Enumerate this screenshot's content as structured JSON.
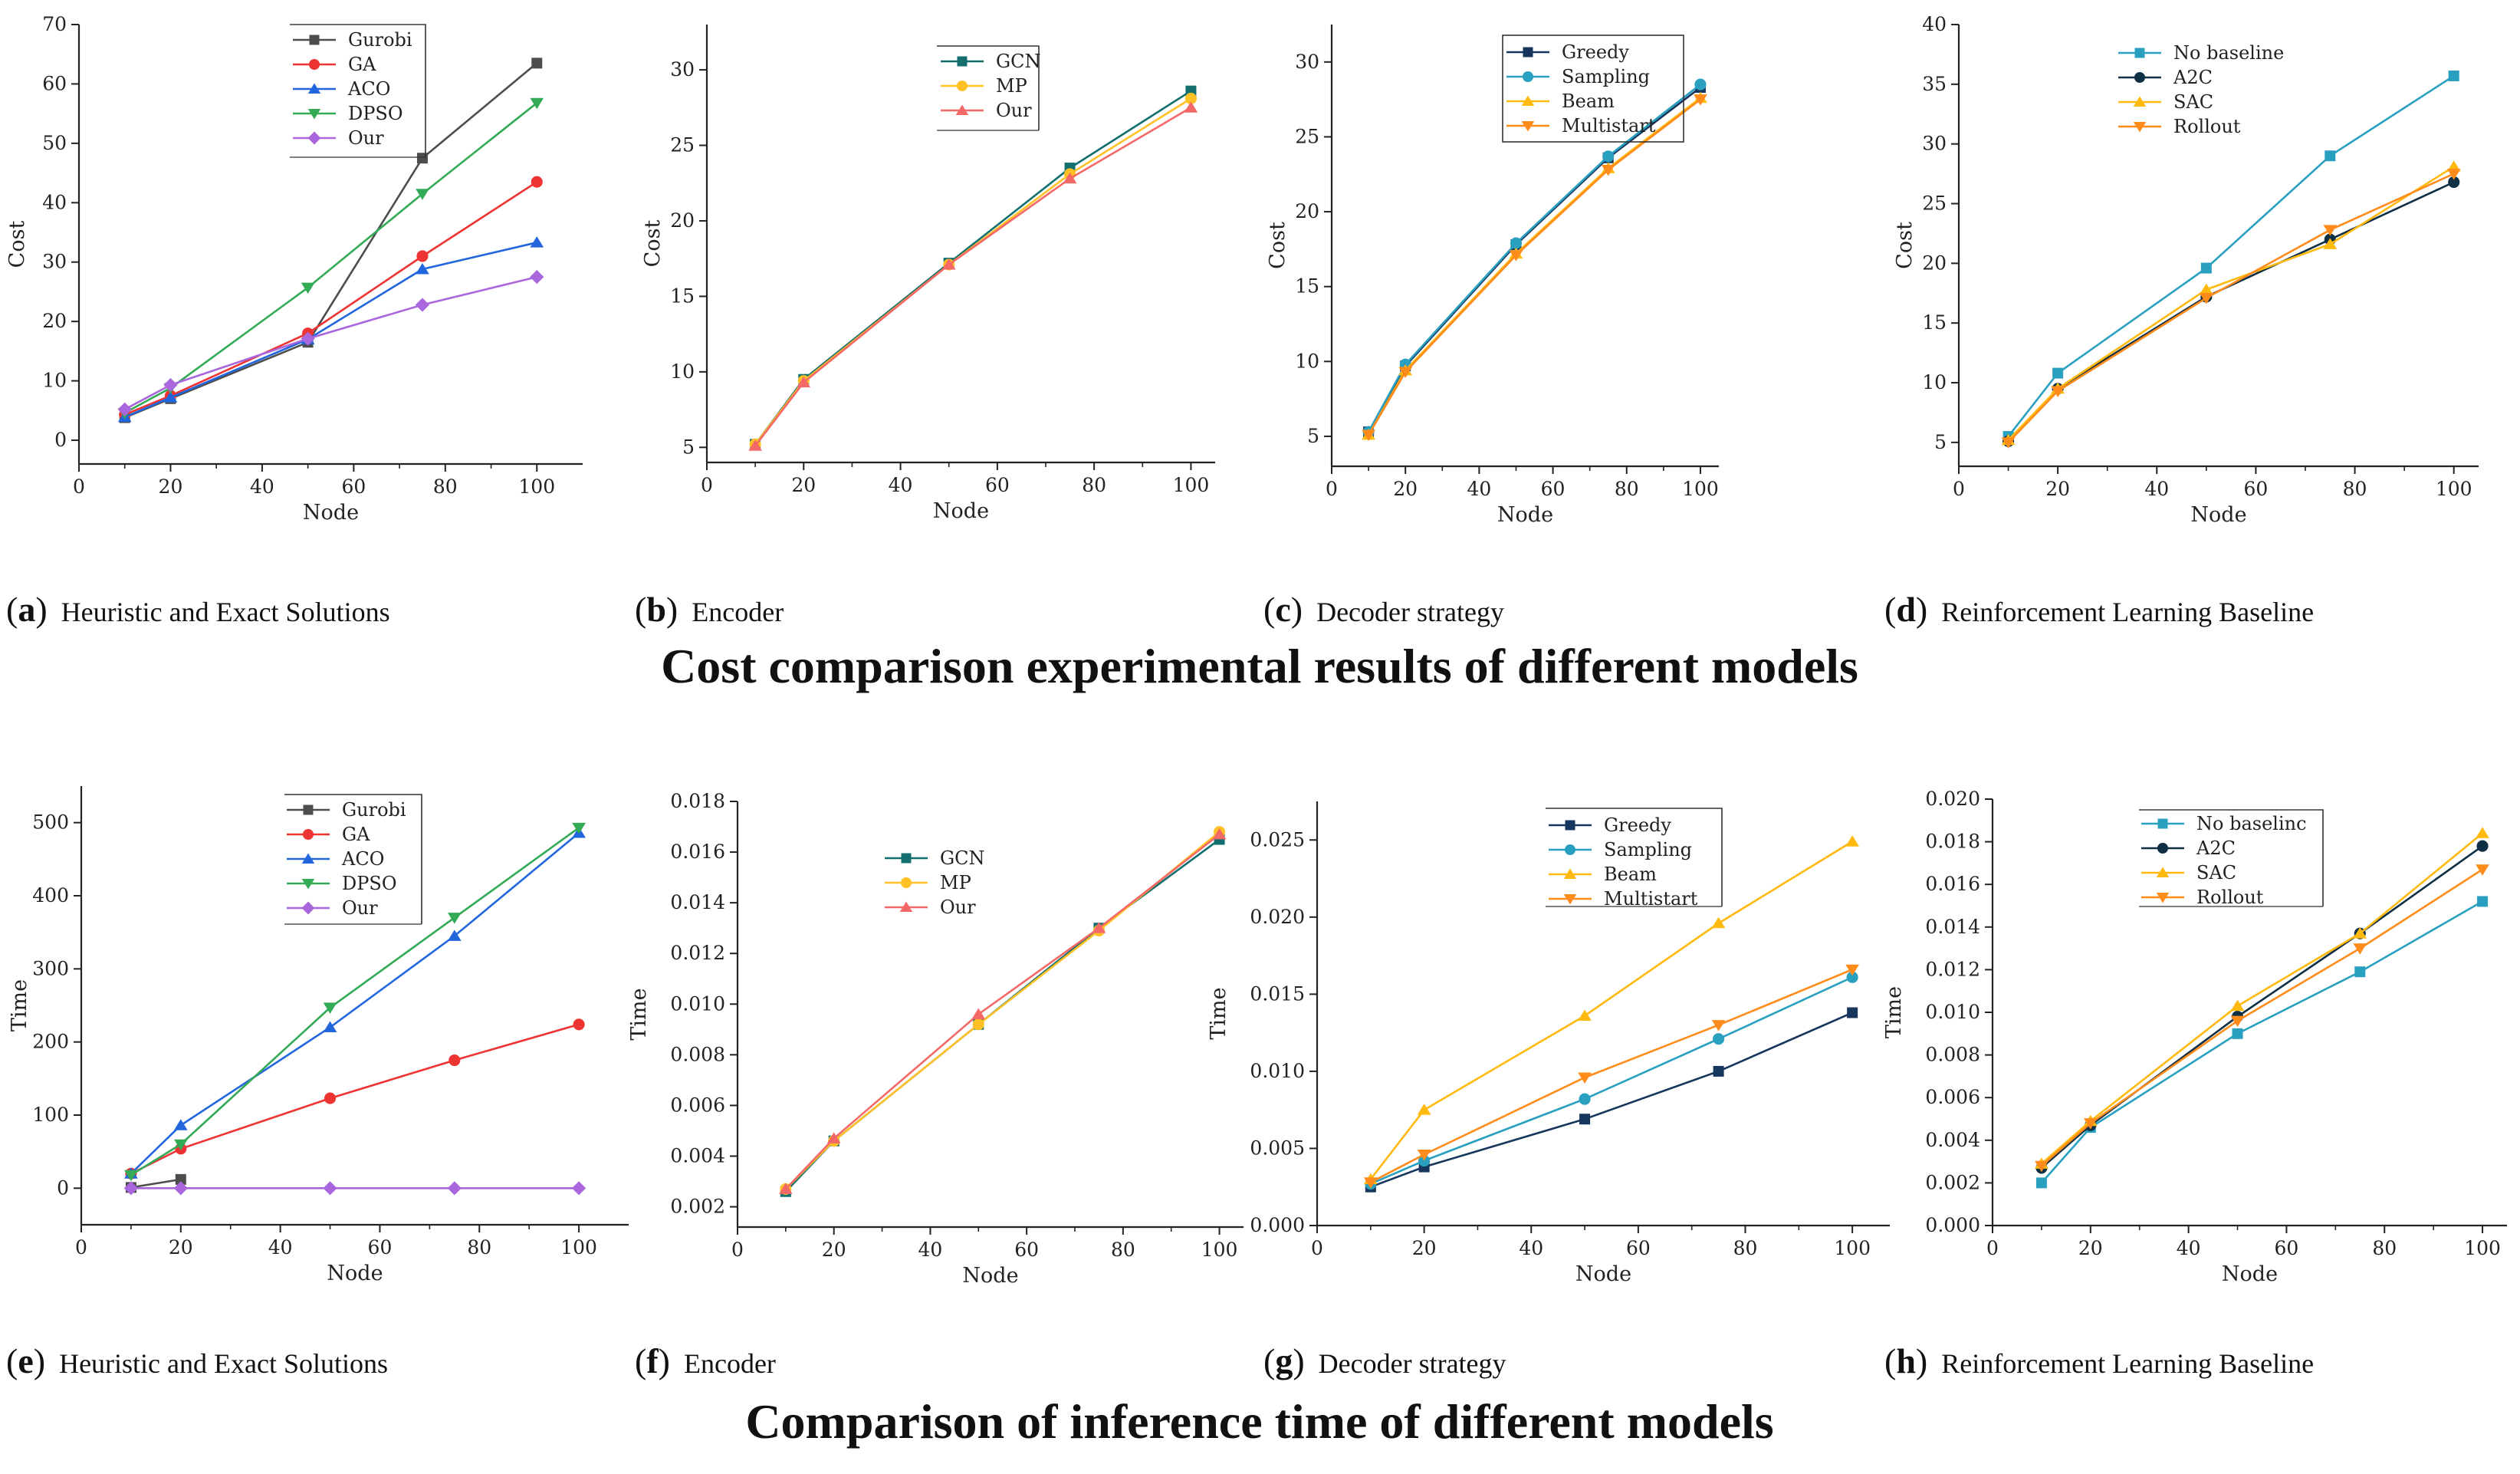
{
  "page": {
    "row_titles": [
      "Cost comparison experimental results of different models",
      "Comparison of inference time of different models"
    ]
  },
  "styles": {
    "Gurobi": {
      "color": "#4d4d4d",
      "marker": "square"
    },
    "GA": {
      "color": "#ee3333",
      "marker": "circle"
    },
    "ACO": {
      "color": "#2266dd",
      "marker": "triangle-up"
    },
    "DPSO": {
      "color": "#33aa55",
      "marker": "triangle-down"
    },
    "Our_a": {
      "color": "#aa66dd",
      "marker": "diamond"
    },
    "GCN": {
      "color": "#136f6f",
      "marker": "square"
    },
    "MP": {
      "color": "#ffc125",
      "marker": "circle"
    },
    "Our_b": {
      "color": "#f46868",
      "marker": "triangle-up"
    },
    "Greedy": {
      "color": "#17365d",
      "marker": "square"
    },
    "Sampling": {
      "color": "#2aa0c0",
      "marker": "circle"
    },
    "Beam": {
      "color": "#ffb90f",
      "marker": "triangle-up"
    },
    "Multistart": {
      "color": "#ff8c1a",
      "marker": "triangle-down"
    },
    "No baseline": {
      "color": "#2aa0c0",
      "marker": "square"
    },
    "A2C": {
      "color": "#0f2f45",
      "marker": "circle"
    },
    "SAC": {
      "color": "#ffb90f",
      "marker": "triangle-up"
    },
    "Rollout": {
      "color": "#ff8c1a",
      "marker": "triangle-down"
    }
  },
  "chart_data": [
    {
      "id": "a",
      "type": "line",
      "panel_letter": "a",
      "caption": "Heuristic and Exact Solutions",
      "xlabel": "Node",
      "ylabel": "Cost",
      "xlim": [
        0,
        110
      ],
      "ylim": [
        -4,
        70
      ],
      "xticks": [
        "0",
        "20",
        "40",
        "60",
        "80",
        "100"
      ],
      "xtick_values": [
        0,
        20,
        40,
        60,
        80,
        100
      ],
      "yticks": [
        "0",
        "10",
        "20",
        "30",
        "40",
        "50",
        "60",
        "70"
      ],
      "ytick_values": [
        0,
        10,
        20,
        30,
        40,
        50,
        60,
        70
      ],
      "legend_position": "top-center",
      "legend_box": "partial",
      "x": [
        10,
        20,
        50,
        75,
        100
      ],
      "series": [
        {
          "name": "Gurobi",
          "style": "Gurobi",
          "values": [
            3.8,
            7.0,
            16.5,
            47.5,
            63.5
          ]
        },
        {
          "name": "GA",
          "style": "GA",
          "values": [
            4.3,
            7.5,
            18.0,
            31.0,
            43.5
          ]
        },
        {
          "name": "ACO",
          "style": "ACO",
          "values": [
            3.9,
            7.2,
            17.0,
            28.8,
            33.3
          ]
        },
        {
          "name": "DPSO",
          "style": "DPSO",
          "values": [
            4.6,
            8.8,
            25.7,
            41.5,
            56.8
          ]
        },
        {
          "name": "Our",
          "style": "Our_a",
          "values": [
            5.2,
            9.3,
            17.1,
            22.8,
            27.5
          ]
        }
      ]
    },
    {
      "id": "b",
      "type": "line",
      "panel_letter": "b",
      "caption": "Encoder",
      "xlabel": "Node",
      "ylabel": "Cost",
      "xlim": [
        0,
        105
      ],
      "ylim": [
        4,
        33
      ],
      "xticks": [
        "0",
        "20",
        "40",
        "60",
        "80",
        "100"
      ],
      "xtick_values": [
        0,
        20,
        40,
        60,
        80,
        100
      ],
      "yticks": [
        "5",
        "10",
        "15",
        "20",
        "25",
        "30"
      ],
      "ytick_values": [
        5,
        10,
        15,
        20,
        25,
        30
      ],
      "legend_position": "top-right",
      "legend_box": "partial",
      "x": [
        10,
        20,
        50,
        75,
        100
      ],
      "series": [
        {
          "name": "GCN",
          "style": "GCN",
          "values": [
            5.2,
            9.5,
            17.2,
            23.5,
            28.6
          ]
        },
        {
          "name": "MP",
          "style": "MP",
          "values": [
            5.2,
            9.4,
            17.1,
            23.1,
            28.1
          ]
        },
        {
          "name": "Our",
          "style": "Our_b",
          "values": [
            5.1,
            9.3,
            17.1,
            22.8,
            27.5
          ]
        }
      ]
    },
    {
      "id": "c",
      "type": "line",
      "panel_letter": "c",
      "caption": "Decoder strategy",
      "xlabel": "Node",
      "ylabel": "Cost",
      "xlim": [
        0,
        105
      ],
      "ylim": [
        3,
        32.5
      ],
      "xticks": [
        "0",
        "20",
        "40",
        "60",
        "80",
        "100"
      ],
      "xtick_values": [
        0,
        20,
        40,
        60,
        80,
        100
      ],
      "yticks": [
        "5",
        "10",
        "15",
        "20",
        "25",
        "30"
      ],
      "ytick_values": [
        5,
        10,
        15,
        20,
        25,
        30
      ],
      "legend_position": "top-left",
      "legend_box": "full",
      "x": [
        10,
        20,
        50,
        75,
        100
      ],
      "series": [
        {
          "name": "Greedy",
          "style": "Greedy",
          "values": [
            5.3,
            9.7,
            17.8,
            23.6,
            28.3
          ]
        },
        {
          "name": "Sampling",
          "style": "Sampling",
          "values": [
            5.3,
            9.8,
            17.9,
            23.7,
            28.5
          ]
        },
        {
          "name": "Beam",
          "style": "Beam",
          "values": [
            5.1,
            9.4,
            17.2,
            22.9,
            27.6
          ]
        },
        {
          "name": "Multistart",
          "style": "Multistart",
          "values": [
            5.1,
            9.3,
            17.1,
            22.8,
            27.5
          ]
        }
      ]
    },
    {
      "id": "d",
      "type": "line",
      "panel_letter": "d",
      "caption": "Reinforcement Learning Baseline",
      "xlabel": "Node",
      "ylabel": "Cost",
      "xlim": [
        0,
        105
      ],
      "ylim": [
        3,
        40
      ],
      "xticks": [
        "0",
        "20",
        "40",
        "60",
        "80",
        "100"
      ],
      "xtick_values": [
        0,
        20,
        40,
        60,
        80,
        100
      ],
      "yticks": [
        "5",
        "10",
        "15",
        "20",
        "25",
        "30",
        "35",
        "40"
      ],
      "ytick_values": [
        5,
        10,
        15,
        20,
        25,
        30,
        35,
        40
      ],
      "legend_position": "top-left",
      "legend_box": "none",
      "x": [
        10,
        20,
        50,
        75,
        100
      ],
      "series": [
        {
          "name": "No baseline",
          "style": "No baseline",
          "values": [
            5.5,
            10.8,
            19.6,
            29.0,
            35.7
          ]
        },
        {
          "name": "A2C",
          "style": "A2C",
          "values": [
            5.1,
            9.5,
            17.2,
            22.0,
            26.8
          ]
        },
        {
          "name": "SAC",
          "style": "SAC",
          "values": [
            5.2,
            9.5,
            17.8,
            21.6,
            28.1
          ]
        },
        {
          "name": "Rollout",
          "style": "Rollout",
          "values": [
            5.0,
            9.3,
            17.1,
            22.8,
            27.5
          ]
        }
      ]
    },
    {
      "id": "e",
      "type": "line",
      "panel_letter": "e",
      "caption": "Heuristic and Exact Solutions",
      "xlabel": "Node",
      "ylabel": "Time",
      "xlim": [
        0,
        110
      ],
      "ylim": [
        -50,
        550
      ],
      "xticks": [
        "0",
        "20",
        "40",
        "60",
        "80",
        "100"
      ],
      "xtick_values": [
        0,
        20,
        40,
        60,
        80,
        100
      ],
      "yticks": [
        "0",
        "100",
        "200",
        "300",
        "400",
        "500"
      ],
      "ytick_values": [
        0,
        100,
        200,
        300,
        400,
        500
      ],
      "legend_position": "top-center",
      "legend_box": "partial",
      "x": [
        10,
        20,
        50,
        75,
        100
      ],
      "series": [
        {
          "name": "Gurobi",
          "style": "Gurobi",
          "x": [
            10,
            20
          ],
          "values": [
            1,
            12
          ]
        },
        {
          "name": "GA",
          "style": "GA",
          "values": [
            20,
            54,
            123,
            175,
            224
          ]
        },
        {
          "name": "ACO",
          "style": "ACO",
          "values": [
            20,
            86,
            220,
            345,
            486
          ]
        },
        {
          "name": "DPSO",
          "style": "DPSO",
          "values": [
            18,
            60,
            247,
            370,
            493
          ]
        },
        {
          "name": "Our",
          "style": "Our_a",
          "values": [
            0,
            0,
            0,
            0,
            0
          ]
        }
      ]
    },
    {
      "id": "f",
      "type": "line",
      "panel_letter": "f",
      "caption": "Encoder",
      "xlabel": "Node",
      "ylabel": "Time",
      "xlim": [
        0,
        105
      ],
      "ylim": [
        0.0012,
        0.018
      ],
      "xticks": [
        "0",
        "20",
        "40",
        "60",
        "80",
        "100"
      ],
      "xtick_values": [
        0,
        20,
        40,
        60,
        80,
        100
      ],
      "yticks": [
        "0.002",
        "0.004",
        "0.006",
        "0.008",
        "0.010",
        "0.012",
        "0.014",
        "0.016",
        "0.018"
      ],
      "ytick_values": [
        0.002,
        0.004,
        0.006,
        0.008,
        0.01,
        0.012,
        0.014,
        0.016,
        0.018
      ],
      "legend_position": "upper-middle",
      "legend_box": "none",
      "x": [
        10,
        20,
        50,
        75,
        100
      ],
      "series": [
        {
          "name": "GCN",
          "style": "GCN",
          "values": [
            0.0026,
            0.0046,
            0.0092,
            0.013,
            0.0165
          ]
        },
        {
          "name": "MP",
          "style": "MP",
          "values": [
            0.0027,
            0.0046,
            0.0092,
            0.0129,
            0.0168
          ]
        },
        {
          "name": "Our",
          "style": "Our_b",
          "values": [
            0.0027,
            0.0047,
            0.0096,
            0.013,
            0.0167
          ]
        }
      ]
    },
    {
      "id": "g",
      "type": "line",
      "panel_letter": "g",
      "caption": "Decoder strategy",
      "xlabel": "Node",
      "ylabel": "Time",
      "xlim": [
        0,
        107
      ],
      "ylim": [
        0,
        0.0275
      ],
      "xticks": [
        "0",
        "20",
        "40",
        "60",
        "80",
        "100"
      ],
      "xtick_values": [
        0,
        20,
        40,
        60,
        80,
        100
      ],
      "yticks": [
        "0.000",
        "0.005",
        "0.010",
        "0.015",
        "0.020",
        "0.025"
      ],
      "ytick_values": [
        0.0,
        0.005,
        0.01,
        0.015,
        0.02,
        0.025
      ],
      "legend_position": "top-right",
      "legend_box": "partial",
      "x": [
        10,
        20,
        50,
        75,
        100
      ],
      "series": [
        {
          "name": "Greedy",
          "style": "Greedy",
          "values": [
            0.0025,
            0.0038,
            0.0069,
            0.01,
            0.0138
          ]
        },
        {
          "name": "Sampling",
          "style": "Sampling",
          "values": [
            0.0027,
            0.0042,
            0.0082,
            0.0121,
            0.0161
          ]
        },
        {
          "name": "Beam",
          "style": "Beam",
          "values": [
            0.003,
            0.0075,
            0.0136,
            0.0196,
            0.0249
          ]
        },
        {
          "name": "Multistart",
          "style": "Multistart",
          "values": [
            0.0028,
            0.0046,
            0.0096,
            0.013,
            0.0166
          ]
        }
      ]
    },
    {
      "id": "h",
      "type": "line",
      "panel_letter": "h",
      "caption": "Reinforcement Learning Baseline",
      "xlabel": "Node",
      "ylabel": "Time",
      "xlim": [
        0,
        105
      ],
      "ylim": [
        0,
        0.02
      ],
      "xticks": [
        "0",
        "20",
        "40",
        "60",
        "80",
        "100"
      ],
      "xtick_values": [
        0,
        20,
        40,
        60,
        80,
        100
      ],
      "yticks": [
        "0.000",
        "0.002",
        "0.004",
        "0.006",
        "0.008",
        "0.010",
        "0.012",
        "0.014",
        "0.016",
        "0.018",
        "0.020"
      ],
      "ytick_values": [
        0.0,
        0.002,
        0.004,
        0.006,
        0.008,
        0.01,
        0.012,
        0.014,
        0.016,
        0.018,
        0.02
      ],
      "legend_position": "top-center",
      "legend_box": "partial",
      "x": [
        10,
        20,
        50,
        75,
        100
      ],
      "series": [
        {
          "name": "No baselinc",
          "style": "No baseline",
          "values": [
            0.002,
            0.0046,
            0.009,
            0.0119,
            0.0152
          ]
        },
        {
          "name": "A2C",
          "style": "A2C",
          "values": [
            0.0027,
            0.0047,
            0.0098,
            0.0137,
            0.0178
          ]
        },
        {
          "name": "SAC",
          "style": "SAC",
          "values": [
            0.0029,
            0.0049,
            0.0103,
            0.0137,
            0.0184
          ]
        },
        {
          "name": "Rollout",
          "style": "Rollout",
          "values": [
            0.0028,
            0.0048,
            0.0096,
            0.013,
            0.0167
          ]
        }
      ]
    }
  ]
}
